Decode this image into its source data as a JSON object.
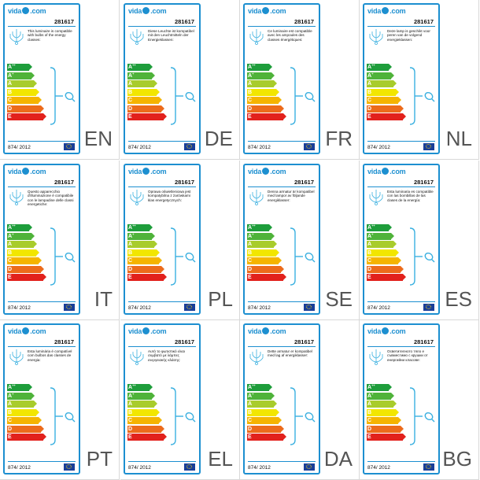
{
  "labels": [
    {
      "lang": "EN",
      "text": "This luminaire is compatible with bulbs of the energy classes:"
    },
    {
      "lang": "DE",
      "text": "Diese Leuchte ist kompatibel mit den Leuchtmitteln der Energieklassen:"
    },
    {
      "lang": "FR",
      "text": "Ce luminaire est compatible avec les ampoules des classes énergétiques:"
    },
    {
      "lang": "NL",
      "text": "Deze lamp is geschikt voor peren van de volgend energieklassen:"
    },
    {
      "lang": "IT",
      "text": "Questo apparecchio d'illuminazione è compatibile con le lampadine delle classi energetiche:"
    },
    {
      "lang": "PL",
      "text": "Oprawa oświetleniowa jest kompatybilna z żarówkami klas energetycznych:"
    },
    {
      "lang": "SE",
      "text": "Denna armatur är kompatibel med lampor av följande energiklasser:"
    },
    {
      "lang": "ES",
      "text": "Esta luminaria es compatible con las bombillas de las clases de la energía:"
    },
    {
      "lang": "PT",
      "text": "Esta luminária é compatível com bulbos das classes de energia:"
    },
    {
      "lang": "EL",
      "text": "Αυτό το φωτιστικό είναι συμβατό με λάμπες ενεργειακής κλάσης:"
    },
    {
      "lang": "DA",
      "text": "Dette armatur er kompatibel med lag af energiklasser:"
    },
    {
      "lang": "BG",
      "text": "Осветителното тяло е съвместимо с крушки от енергийни класове:"
    }
  ],
  "brand": {
    "left": "vida",
    "right": ".com"
  },
  "product_code": "281617",
  "regulation": "874/ 2012",
  "classes": [
    {
      "main": "A",
      "sup": "++",
      "color": "#1e9d3b"
    },
    {
      "main": "A",
      "sup": "+",
      "color": "#4fb33a"
    },
    {
      "main": "A",
      "sup": "",
      "color": "#a8cc2c"
    },
    {
      "main": "B",
      "sup": "",
      "color": "#f2e600"
    },
    {
      "main": "C",
      "sup": "",
      "color": "#f5b400"
    },
    {
      "main": "D",
      "sup": "",
      "color": "#ec6b1b"
    },
    {
      "main": "E",
      "sup": "",
      "color": "#e2211c"
    }
  ]
}
